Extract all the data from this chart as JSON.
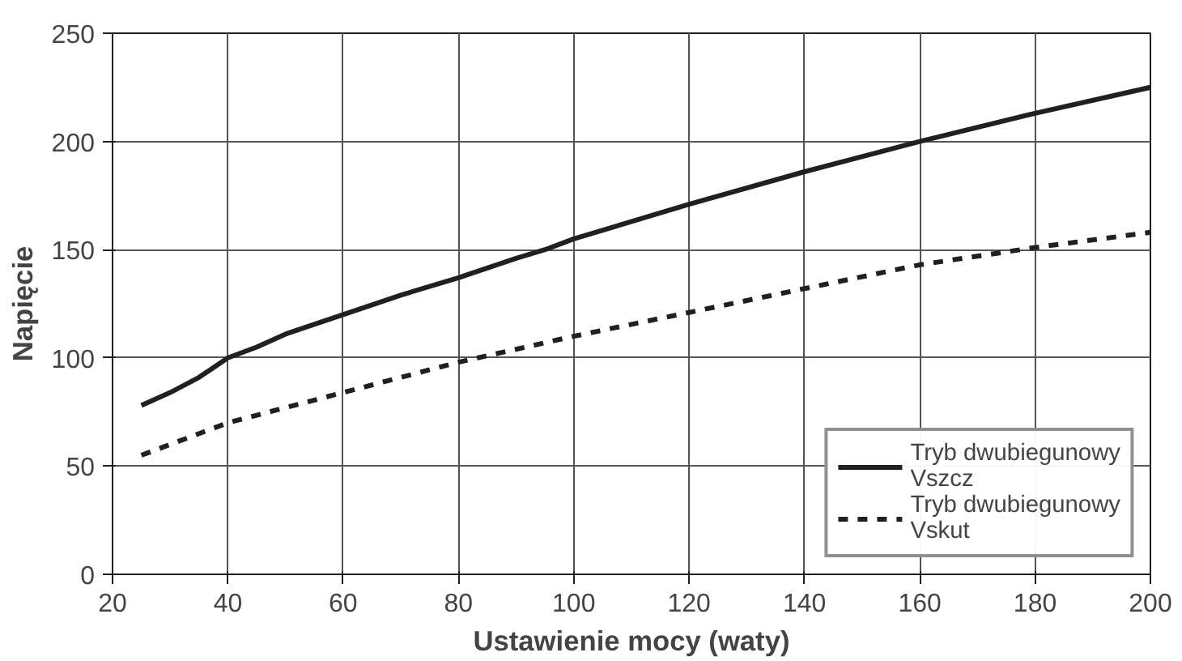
{
  "chart_data": {
    "type": "line",
    "xlabel": "Ustawienie mocy (waty)",
    "ylabel": "Napięcie",
    "xlim": [
      20,
      200
    ],
    "xticks": [
      20,
      40,
      60,
      80,
      100,
      120,
      140,
      160,
      180,
      200
    ],
    "ylim": [
      0,
      250
    ],
    "yticks": [
      0,
      50,
      100,
      150,
      200,
      250
    ],
    "grid": true,
    "legend": "bottom right",
    "series": [
      {
        "name": "Tryb dwubiegunowy Vszcz",
        "color": "#231f20",
        "line_style": "solid",
        "x": [
          25,
          30,
          35,
          40,
          45,
          50,
          60,
          70,
          80,
          90,
          95,
          100,
          120,
          140,
          160,
          180,
          200
        ],
        "values": [
          78,
          84,
          91,
          100,
          105,
          111,
          120,
          129,
          137,
          146,
          150,
          155,
          171,
          186,
          200,
          213,
          225
        ]
      },
      {
        "name": "Tryb dwubiegunowy Vskut",
        "color": "#231f20",
        "line_style": "dashed",
        "x": [
          25,
          40,
          60,
          80,
          100,
          120,
          140,
          160,
          180,
          200
        ],
        "values": [
          55,
          70,
          84,
          98,
          110,
          121,
          132,
          143,
          151,
          158
        ]
      }
    ]
  }
}
